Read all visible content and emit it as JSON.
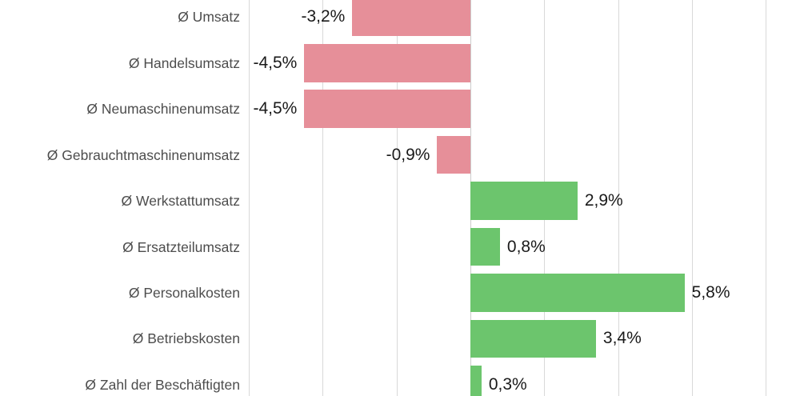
{
  "chart_data": {
    "type": "bar",
    "orientation": "horizontal",
    "unit": "%",
    "categories": [
      "Ø Umsatz",
      "Ø Handelsumsatz",
      "Ø Neumaschinenumsatz",
      "Ø Gebrauchtmaschinenumsatz",
      "Ø Werkstattumsatz",
      "Ø Ersatzteilumsatz",
      "Ø Personalkosten",
      "Ø Betriebskosten",
      "Ø Zahl der Beschäftigten"
    ],
    "values": [
      -3.2,
      -4.5,
      -4.5,
      -0.9,
      2.9,
      0.8,
      5.8,
      3.4,
      0.3
    ],
    "value_labels": [
      "-3,2%",
      "-4,5%",
      "-4,5%",
      "-0,9%",
      "2,9%",
      "0,8%",
      "5,8%",
      "3,4%",
      "0,3%"
    ],
    "xlim": [
      -6,
      8
    ],
    "grid_step": 2,
    "grid": true,
    "legend": "none",
    "colors": {
      "negative": "#e68f99",
      "positive": "#6cc56d",
      "gridline": "#d9d9d9",
      "zero_line": "#cccccc",
      "category_text": "#4d4d4d",
      "value_text": "#1a1a1a",
      "background": "#ffffff"
    }
  }
}
